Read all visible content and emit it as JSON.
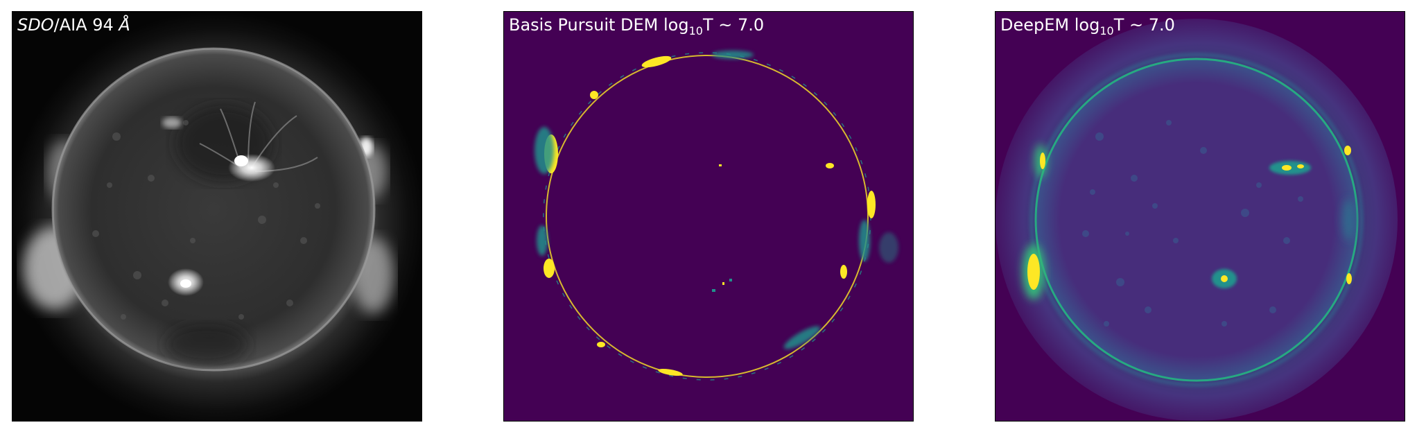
{
  "panels": [
    {
      "title": {
        "instrument": "SDO",
        "channel": "/AIA 94 ",
        "unit": "Å"
      },
      "colormap": "gray",
      "background": "#000000",
      "disk_color": "#2e2e2e"
    },
    {
      "title": {
        "prefix": "Basis Pursuit DEM log",
        "subscript": "10",
        "suffix": "T ~ 7.0"
      },
      "colormap": "viridis",
      "background": "#440154",
      "limb_color": "#fde725"
    },
    {
      "title": {
        "prefix": "DeepEM log",
        "subscript": "10",
        "suffix": "T ~ 7.0"
      },
      "colormap": "viridis",
      "background": "#440154",
      "limb_color": "#27ad81"
    }
  ]
}
